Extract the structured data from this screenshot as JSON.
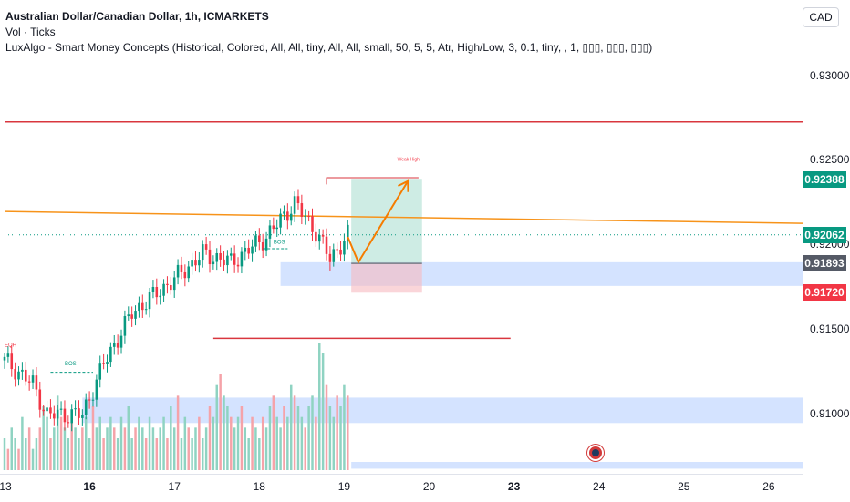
{
  "legend": {
    "title": "Australian Dollar/Canadian Dollar, 1h, ICMARKETS",
    "volume": "Vol · Ticks",
    "indicator": "LuxAlgo - Smart Money Concepts (Historical, Colored, All, All, tiny, All, All, small, 50, 5, 5, Atr, High/Low, 3, 0.1, tiny, , 1, ▯▯▯, ▯▯▯, ▯▯▯)"
  },
  "currency_button": "CAD",
  "price_labels": {
    "p1": "0.91893",
    "p2": "0.92388",
    "p3": "0.92062",
    "p4": "0.91720"
  },
  "tag_colors": {
    "p1": "#555a66",
    "p2": "#089981",
    "p3": "#089981",
    "p4": "#f23645"
  },
  "annotations": {
    "eqh": "EQH",
    "bos1": "BOS",
    "bos2": "BOS",
    "weak_high": "Weak High"
  },
  "chart_data": {
    "type": "candlestick",
    "title": "Australian Dollar/Canadian Dollar, 1h, ICMARKETS",
    "y_ticks": [
      {
        "value": 0.93,
        "label": "0.93000"
      },
      {
        "value": 0.925,
        "label": "0.92500"
      },
      {
        "value": 0.92,
        "label": "0.92000"
      },
      {
        "value": 0.915,
        "label": "0.91500"
      },
      {
        "value": 0.91,
        "label": "0.91000"
      }
    ],
    "ylim": [
      0.9065,
      0.9345
    ],
    "x_ticks": [
      {
        "label": "13",
        "index": 0,
        "bold": false
      },
      {
        "label": "16",
        "index": 24,
        "bold": true
      },
      {
        "label": "17",
        "index": 48,
        "bold": false
      },
      {
        "label": "18",
        "index": 72,
        "bold": false
      },
      {
        "label": "19",
        "index": 96,
        "bold": false
      },
      {
        "label": "20",
        "index": 120,
        "bold": false
      },
      {
        "label": "23",
        "index": 144,
        "bold": true
      },
      {
        "label": "24",
        "index": 168,
        "bold": false
      },
      {
        "label": "25",
        "index": 192,
        "bold": false
      },
      {
        "label": "26",
        "index": 216,
        "bold": false
      }
    ],
    "x_range": [
      0,
      232
    ],
    "candle_count": 98,
    "key_closes": [
      {
        "index": 0,
        "value": 0.9132
      },
      {
        "index": 8,
        "value": 0.9118
      },
      {
        "index": 12,
        "value": 0.91
      },
      {
        "index": 22,
        "value": 0.91
      },
      {
        "index": 28,
        "value": 0.913
      },
      {
        "index": 36,
        "value": 0.916
      },
      {
        "index": 48,
        "value": 0.918
      },
      {
        "index": 56,
        "value": 0.9195
      },
      {
        "index": 64,
        "value": 0.919
      },
      {
        "index": 74,
        "value": 0.9205
      },
      {
        "index": 82,
        "value": 0.9225
      },
      {
        "index": 88,
        "value": 0.9208
      },
      {
        "index": 92,
        "value": 0.9192
      },
      {
        "index": 97,
        "value": 0.9206
      }
    ],
    "levels": [
      {
        "value": 0.9273,
        "color": "#d9363e",
        "from_index": 0,
        "to_index": 232
      },
      {
        "value": 0.922,
        "to_value": 0.9213,
        "color": "#f7931a",
        "from_index": 0,
        "to_index": 232
      },
      {
        "value": 0.92062,
        "color": "#089981",
        "dotted": true,
        "from_index": 0,
        "to_index": 232
      },
      {
        "value": 0.9145,
        "color": "#d9363e",
        "from_index": 59,
        "to_index": 143
      }
    ],
    "zones": [
      {
        "top": 0.919,
        "bottom": 0.9176,
        "color": "#c6d9ff",
        "from_index": 78,
        "to_index": 232
      },
      {
        "top": 0.911,
        "bottom": 0.9095,
        "color": "#c6d9ff",
        "from_index": 22,
        "to_index": 232
      },
      {
        "top": 0.9072,
        "bottom": 0.9068,
        "color": "#c6d9ff",
        "from_index": 98,
        "to_index": 232
      }
    ],
    "position": {
      "entry": 0.91893,
      "target": 0.92388,
      "stop": 0.9172,
      "from_index": 98,
      "to_index": 118
    },
    "projection": [
      {
        "index": 97,
        "value": 0.9205
      },
      {
        "index": 100,
        "value": 0.919
      },
      {
        "index": 114,
        "value": 0.9238
      }
    ],
    "weak_high_line": {
      "value": 0.924,
      "from_index": 91,
      "to_index": 117
    },
    "volume": {
      "max": 12,
      "values": [
        3,
        2,
        4,
        3,
        2,
        5,
        3,
        4,
        2,
        3,
        4,
        6,
        5,
        3,
        4,
        7,
        5,
        4,
        3,
        5,
        4,
        3,
        4,
        5,
        3,
        6,
        4,
        5,
        3,
        4,
        5,
        4,
        3,
        5,
        4,
        6,
        3,
        4,
        5,
        4,
        3,
        5,
        4,
        3,
        4,
        5,
        3,
        6,
        4,
        7,
        3,
        5,
        4,
        3,
        4,
        5,
        3,
        4,
        6,
        5,
        8,
        9,
        7,
        6,
        5,
        4,
        5,
        6,
        4,
        3,
        5,
        4,
        3,
        5,
        4,
        6,
        7,
        5,
        4,
        6,
        5,
        8,
        7,
        6,
        5,
        4,
        6,
        7,
        5,
        12,
        11,
        8,
        6,
        5,
        7,
        6,
        8,
        7
      ]
    }
  }
}
